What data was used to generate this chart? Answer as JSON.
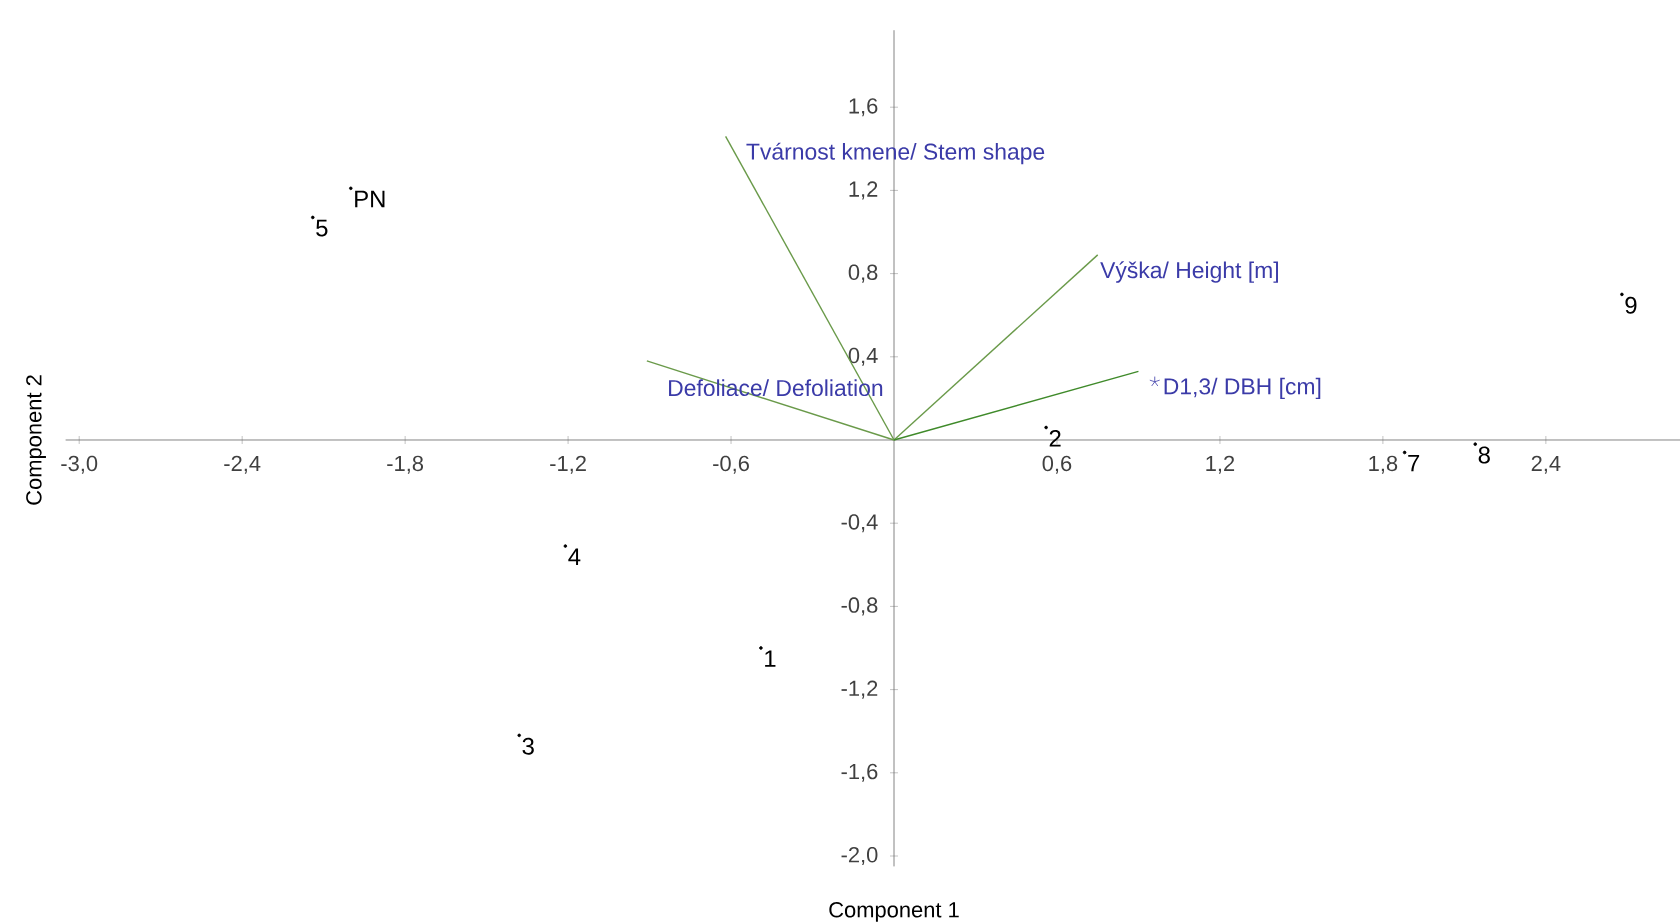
{
  "chart_data": {
    "type": "scatter",
    "xlabel": "Component 1",
    "ylabel": "Component 2",
    "xlim": [
      -3.05,
      2.9
    ],
    "ylim": [
      -2.05,
      1.97
    ],
    "grid": false,
    "xticks": [
      {
        "value": -3.0,
        "label": "-3,0"
      },
      {
        "value": -2.4,
        "label": "-2,4"
      },
      {
        "value": -1.8,
        "label": "-1,8"
      },
      {
        "value": -1.2,
        "label": "-1,2"
      },
      {
        "value": -0.6,
        "label": "-0,6"
      },
      {
        "value": 0.6,
        "label": "0,6"
      },
      {
        "value": 1.2,
        "label": "1,2"
      },
      {
        "value": 1.8,
        "label": "1,8"
      },
      {
        "value": 2.4,
        "label": "2,4"
      }
    ],
    "yticks": [
      {
        "value": -2.0,
        "label": "-2,0"
      },
      {
        "value": -1.6,
        "label": "-1,6"
      },
      {
        "value": -1.2,
        "label": "-1,2"
      },
      {
        "value": -0.8,
        "label": "-0,8"
      },
      {
        "value": -0.4,
        "label": "-0,4"
      },
      {
        "value": 0.4,
        "label": "0,4"
      },
      {
        "value": 0.8,
        "label": "0,8"
      },
      {
        "value": 1.2,
        "label": "1,2"
      },
      {
        "value": 1.6,
        "label": "1,6"
      }
    ],
    "series": [
      {
        "marker": "circle",
        "color": "#000000",
        "x": [
          -2.0,
          -2.14,
          -1.21,
          -0.49,
          -1.38,
          0.56,
          1.88,
          2.14,
          2.68
        ],
        "values": [
          1.21,
          1.07,
          -0.51,
          -1.0,
          -1.42,
          0.06,
          -0.06,
          -0.02,
          0.7
        ]
      },
      {
        "marker": "cross",
        "color": "#3b3ba8",
        "x": [
          0.96
        ],
        "values": [
          0.28
        ]
      },
      {
        "type": "line",
        "name": "Tvárnost kmene/ Stem shape",
        "color": "#6a9a4a",
        "x": [
          0,
          -0.62
        ],
        "values": [
          0,
          1.46
        ]
      },
      {
        "type": "line",
        "name": "Výška/ Height [m]",
        "color": "#6a9a4a",
        "x": [
          0,
          0.75
        ],
        "values": [
          0,
          0.89
        ]
      },
      {
        "type": "line",
        "name": "Defoliace/ Defoliation",
        "color": "#6a9a4a",
        "x": [
          0,
          -0.91
        ],
        "values": [
          0,
          0.38
        ]
      },
      {
        "type": "line",
        "name": "D1,3/ DBH [cm]",
        "color": "#3f8a2a",
        "x": [
          0,
          0.9
        ],
        "values": [
          0,
          0.33
        ]
      }
    ],
    "annotations": [
      {
        "text": "PN",
        "x": -2.0,
        "y": 1.21
      },
      {
        "text": "5",
        "x": -2.14,
        "y": 1.07
      },
      {
        "text": "4",
        "x": -1.21,
        "y": -0.51
      },
      {
        "text": "1",
        "x": -0.49,
        "y": -1.0
      },
      {
        "text": "3",
        "x": -1.38,
        "y": -1.42
      },
      {
        "text": "2",
        "x": 0.56,
        "y": 0.06
      },
      {
        "text": "7",
        "x": 1.88,
        "y": -0.06
      },
      {
        "text": "8",
        "x": 2.14,
        "y": -0.02
      },
      {
        "text": "9",
        "x": 2.68,
        "y": 0.7
      }
    ]
  }
}
